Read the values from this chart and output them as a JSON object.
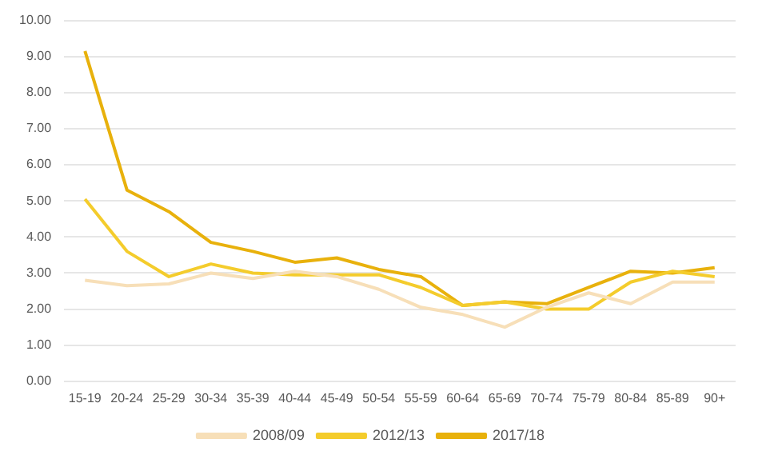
{
  "chart_data": {
    "type": "line",
    "categories": [
      "15-19",
      "20-24",
      "25-29",
      "30-34",
      "35-39",
      "40-44",
      "45-49",
      "50-54",
      "55-59",
      "60-64",
      "65-69",
      "70-74",
      "75-79",
      "80-84",
      "85-89",
      "90+"
    ],
    "series": [
      {
        "name": "2008/09",
        "color": "#f7dfb8",
        "values": [
          2.8,
          2.65,
          2.7,
          3.0,
          2.85,
          3.05,
          2.9,
          2.55,
          2.05,
          1.85,
          1.5,
          2.05,
          2.45,
          2.15,
          2.75,
          2.75
        ]
      },
      {
        "name": "2012/13",
        "color": "#f4cc2c",
        "values": [
          5.05,
          3.6,
          2.9,
          3.25,
          3.0,
          2.95,
          2.95,
          2.95,
          2.6,
          2.1,
          2.2,
          2.0,
          2.0,
          2.75,
          3.05,
          2.9
        ]
      },
      {
        "name": "2017/18",
        "color": "#e8b10c",
        "values": [
          9.15,
          5.3,
          4.7,
          3.85,
          3.6,
          3.3,
          3.42,
          3.1,
          2.9,
          2.1,
          2.2,
          2.15,
          2.6,
          3.05,
          3.0,
          3.15
        ]
      }
    ],
    "ylim": [
      0,
      10
    ],
    "yticks": [
      {
        "value": 0,
        "label": "0.00"
      },
      {
        "value": 1,
        "label": "1.00"
      },
      {
        "value": 2,
        "label": "2.00"
      },
      {
        "value": 3,
        "label": "3.00"
      },
      {
        "value": 4,
        "label": "4.00"
      },
      {
        "value": 5,
        "label": "5.00"
      },
      {
        "value": 6,
        "label": "6.00"
      },
      {
        "value": 7,
        "label": "7.00"
      },
      {
        "value": 8,
        "label": "8.00"
      },
      {
        "value": 9,
        "label": "9.00"
      },
      {
        "value": 10,
        "label": "10.00"
      }
    ],
    "grid": "y",
    "legend": "bottom",
    "marker": "none",
    "line_style": "solid"
  }
}
